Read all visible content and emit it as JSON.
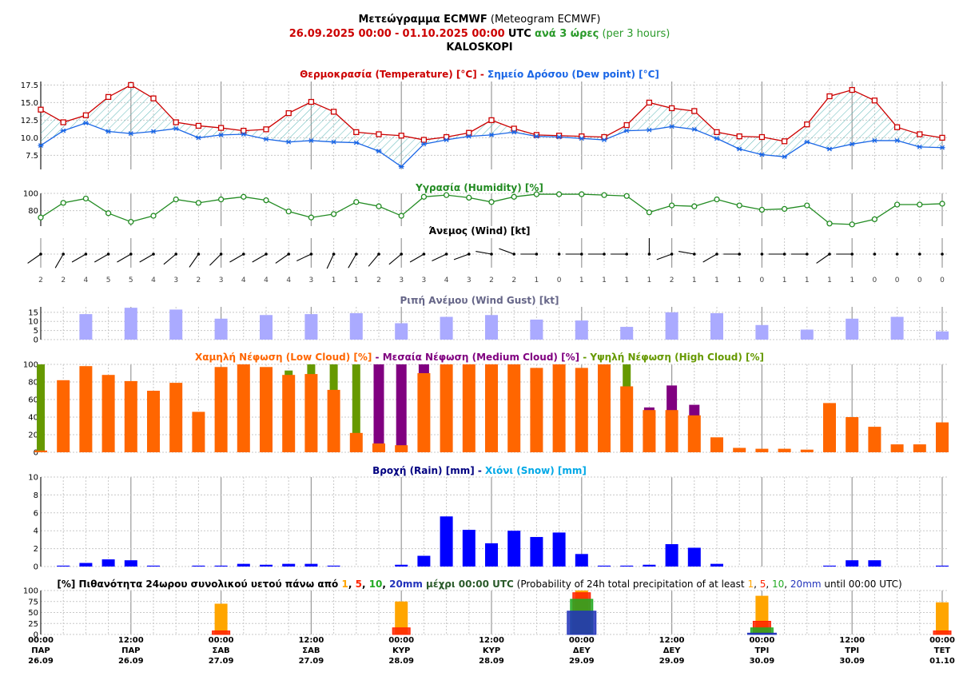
{
  "header": {
    "line1_bold": "Μετεώγραμμα ECMWF",
    "line1_rest": "(Meteogram ECMWF)",
    "range_from": "26.09.2025 00:00",
    "range_sep": "-",
    "range_to": "01.10.2025 00:00",
    "range_utc": "UTC",
    "range_step": "ανά 3 ώρες",
    "range_step_en": "(per 3 hours)",
    "location": "KALOSKOPI"
  },
  "colors": {
    "temperature": "#cc0000",
    "dewpoint": "#1a66e6",
    "humidity": "#228b22",
    "wind": "#000000",
    "gust": "#aaaaff",
    "low_cloud": "#ff6600",
    "medium_cloud": "#800080",
    "high_cloud": "#669900",
    "rain": "#0000ff",
    "snow": "#00a8e6",
    "p1": "#ffa500",
    "p5": "#ff2200",
    "p10": "#22aa22",
    "p20": "#2233bb"
  },
  "time_axis": {
    "labels": [
      [
        "00:00",
        "ΠΑΡ",
        "26.09"
      ],
      [
        "12:00",
        "ΠΑΡ",
        "26.09"
      ],
      [
        "00:00",
        "ΣΑΒ",
        "27.09"
      ],
      [
        "12:00",
        "ΣΑΒ",
        "27.09"
      ],
      [
        "00:00",
        "ΚΥΡ",
        "28.09"
      ],
      [
        "12:00",
        "ΚΥΡ",
        "28.09"
      ],
      [
        "00:00",
        "ΔΕΥ",
        "29.09"
      ],
      [
        "12:00",
        "ΔΕΥ",
        "29.09"
      ],
      [
        "00:00",
        "ΤΡΙ",
        "30.09"
      ],
      [
        "12:00",
        "ΤΡΙ",
        "30.09"
      ],
      [
        "00:00",
        "ΤΕΤ",
        "01.10"
      ]
    ]
  },
  "chart_data": [
    {
      "type": "line",
      "id": "temperature",
      "title_parts": [
        {
          "text": "Θερμοκρασία (Temperature) [°C]",
          "color": "temperature"
        },
        {
          "text": " - ",
          "color": "temperature"
        },
        {
          "text": "Σημείο Δρόσου (Dew point) [°C]",
          "color": "dewpoint"
        }
      ],
      "yticks": [
        "7.5",
        "10.0",
        "12.5",
        "15.0",
        "17.5"
      ],
      "ylim": [
        5.5,
        18
      ],
      "series": [
        {
          "name": "Θερμοκρασία (Temperature) [°C]",
          "values": [
            14.0,
            12.2,
            13.2,
            15.8,
            17.5,
            15.6,
            12.2,
            11.7,
            11.4,
            11.0,
            11.2,
            13.5,
            15.1,
            13.7,
            10.8,
            10.5,
            10.3,
            9.7,
            10.1,
            10.7,
            12.5,
            11.3,
            10.4,
            10.3,
            10.2,
            10.1,
            11.8,
            15.0,
            14.2,
            13.8,
            10.8,
            10.2,
            10.1,
            9.5,
            11.9,
            15.9,
            16.8,
            15.3,
            11.5,
            10.5,
            10.0
          ]
        },
        {
          "name": "Σημείο Δρόσου (Dew point) [°C]",
          "values": [
            8.9,
            11.0,
            12.1,
            10.9,
            10.6,
            10.9,
            11.3,
            10.0,
            10.4,
            10.5,
            9.8,
            9.4,
            9.6,
            9.4,
            9.3,
            8.1,
            5.9,
            9.1,
            9.7,
            10.2,
            10.4,
            10.8,
            10.2,
            10.1,
            9.9,
            9.7,
            11.0,
            11.1,
            11.6,
            11.2,
            9.9,
            8.4,
            7.6,
            7.3,
            9.4,
            8.4,
            9.1,
            9.6,
            9.6,
            8.7,
            8.6
          ]
        }
      ]
    },
    {
      "type": "line",
      "id": "humidity",
      "title": "Υγρασία (Humidity) [%]",
      "yticks": [
        "80",
        "100"
      ],
      "ylim": [
        62,
        100
      ],
      "series": [
        {
          "name": "Υγρασία (Humidity) [%]",
          "values": [
            72,
            89,
            94,
            77,
            67,
            74,
            93,
            89,
            93,
            96,
            92,
            79,
            72,
            76,
            90,
            85,
            74,
            96,
            98,
            95,
            90,
            96,
            99,
            99,
            99,
            98,
            97,
            78,
            86,
            85,
            93,
            86,
            81,
            82,
            86,
            65,
            64,
            70,
            87,
            87,
            88
          ]
        }
      ]
    },
    {
      "type": "wind",
      "id": "wind",
      "title": "Άνεμος (Wind) [kt]",
      "speed_kt": [
        2,
        2,
        4,
        5,
        5,
        4,
        3,
        2,
        3,
        4,
        4,
        4,
        3,
        1,
        1,
        2,
        3,
        3,
        4,
        3,
        2,
        2,
        1,
        0,
        1,
        1,
        1,
        1,
        2,
        1,
        1,
        1,
        0,
        1,
        1,
        1,
        1,
        0,
        0,
        0,
        0
      ],
      "direction_deg": [
        235,
        210,
        240,
        240,
        240,
        240,
        230,
        215,
        225,
        240,
        240,
        235,
        245,
        205,
        210,
        220,
        230,
        240,
        245,
        250,
        280,
        290,
        270,
        0,
        270,
        270,
        270,
        0,
        250,
        280,
        240,
        270,
        0,
        270,
        270,
        235,
        270,
        0,
        0,
        0,
        0
      ]
    },
    {
      "type": "bar",
      "id": "gust",
      "title": "Ριπή Ανέμου (Wind Gust) [kt]",
      "yticks": [
        "0",
        "5",
        "10",
        "15"
      ],
      "ylim": [
        0,
        18
      ],
      "values": [
        14.0,
        17.5,
        16.5,
        11.5,
        13.5,
        14.0,
        14.5,
        9.0,
        12.5,
        13.5,
        11.0,
        10.5,
        7.0,
        15.0,
        14.5,
        8.0,
        5.5,
        11.5,
        12.5,
        4.5
      ],
      "at_step": [
        2,
        4,
        6,
        8,
        10,
        12,
        14,
        16,
        18,
        20,
        22,
        24,
        26,
        28,
        30,
        32,
        34,
        36,
        38,
        40
      ]
    },
    {
      "type": "bar",
      "id": "cloud",
      "title_parts": [
        {
          "text": "Χαμηλή Νέφωση (Low Cloud) [%]",
          "color": "low_cloud"
        },
        {
          "text": " - ",
          "color": "medium_cloud"
        },
        {
          "text": "Μεσαία Νέφωση (Medium Cloud) [%]",
          "color": "medium_cloud"
        },
        {
          "text": " - ",
          "color": "high_cloud"
        },
        {
          "text": "Υψηλή Νέφωση (High Cloud) [%]",
          "color": "high_cloud"
        }
      ],
      "yticks": [
        "0",
        "20",
        "40",
        "60",
        "80",
        "100"
      ],
      "ylim": [
        0,
        100
      ],
      "series": [
        {
          "name": "Υψηλή Νέφωση (High Cloud) [%]",
          "values": [
            100,
            0,
            0,
            0,
            0,
            0,
            0,
            0,
            0,
            0,
            0,
            93,
            100,
            100,
            100,
            0,
            0,
            0,
            0,
            0,
            0,
            0,
            0,
            0,
            0,
            0,
            100,
            0,
            0,
            0,
            0,
            0,
            0,
            0,
            0,
            0,
            0,
            0,
            0,
            0,
            0
          ]
        },
        {
          "name": "Μεσαία Νέφωση (Medium Cloud) [%]",
          "values": [
            0,
            0,
            0,
            0,
            0,
            0,
            0,
            0,
            0,
            0,
            0,
            0,
            0,
            0,
            0,
            100,
            100,
            100,
            0,
            0,
            0,
            0,
            0,
            0,
            0,
            0,
            0,
            51,
            76,
            54,
            0,
            0,
            0,
            0,
            0,
            0,
            0,
            0,
            0,
            0,
            0
          ]
        },
        {
          "name": "Χαμηλή Νέφωση (Low Cloud) [%]",
          "values": [
            2,
            82,
            98,
            88,
            81,
            70,
            79,
            46,
            97,
            100,
            97,
            88,
            89,
            71,
            22,
            10,
            8,
            90,
            100,
            100,
            100,
            100,
            96,
            100,
            96,
            100,
            75,
            48,
            48,
            42,
            17,
            5,
            4,
            4,
            3,
            56,
            40,
            29,
            9,
            9,
            34
          ]
        }
      ]
    },
    {
      "type": "bar",
      "id": "precipitation",
      "title_parts": [
        {
          "text": "Βροχή (Rain) [mm]",
          "color": "rain_title"
        },
        {
          "text": " - ",
          "color": "rain_title"
        },
        {
          "text": "Χιόνι (Snow) [mm]",
          "color": "snow"
        }
      ],
      "yticks": [
        "0",
        "2",
        "4",
        "6",
        "8",
        "10"
      ],
      "ylim": [
        0,
        10
      ],
      "series": [
        {
          "name": "Βροχή (Rain) [mm]",
          "values": [
            0.0,
            0.1,
            0.4,
            0.8,
            0.7,
            0.1,
            0.0,
            0.1,
            0.1,
            0.3,
            0.2,
            0.3,
            0.3,
            0.1,
            0.0,
            0.0,
            0.2,
            1.2,
            5.6,
            4.1,
            2.6,
            4.0,
            3.3,
            3.8,
            1.4,
            0.1,
            0.1,
            0.2,
            2.5,
            2.1,
            0.3,
            0.0,
            0.0,
            0.0,
            0.0,
            0.1,
            0.7,
            0.7,
            0.0,
            0.0,
            0.1
          ]
        },
        {
          "name": "Χιόνι (Snow) [mm]",
          "values": [
            0,
            0,
            0,
            0,
            0,
            0,
            0,
            0,
            0,
            0,
            0,
            0,
            0,
            0,
            0,
            0,
            0,
            0,
            0,
            0,
            0,
            0,
            0,
            0,
            0,
            0,
            0,
            0,
            0,
            0,
            0,
            0,
            0,
            0,
            0,
            0,
            0,
            0,
            0,
            0,
            0
          ]
        }
      ]
    },
    {
      "type": "bar",
      "id": "probability",
      "title_parts": [
        {
          "text": "[%] Πιθανότητα 24ωρου συνολικού υετού πάνω από ",
          "color": "#000000",
          "bold": true
        },
        {
          "text": "1",
          "color": "p1",
          "bold": true
        },
        {
          "text": ", ",
          "color": "#000000",
          "bold": true
        },
        {
          "text": "5",
          "color": "p5",
          "bold": true
        },
        {
          "text": ", ",
          "color": "#000000",
          "bold": true
        },
        {
          "text": "10",
          "color": "p10",
          "bold": true
        },
        {
          "text": ", ",
          "color": "#000000",
          "bold": true
        },
        {
          "text": "20mm",
          "color": "p20",
          "bold": true
        },
        {
          "text": " μέχρι 00:00 UTC",
          "color": "#2a5a2a",
          "bold": true
        },
        {
          "text": " (Probability of 24h total precipitation of at least ",
          "color": "#000000",
          "bold": false
        },
        {
          "text": "1",
          "color": "p1",
          "bold": false
        },
        {
          "text": ", ",
          "color": "#000000",
          "bold": false
        },
        {
          "text": "5",
          "color": "p5",
          "bold": false
        },
        {
          "text": ", ",
          "color": "#000000",
          "bold": false
        },
        {
          "text": "10",
          "color": "p10",
          "bold": false
        },
        {
          "text": ", ",
          "color": "#000000",
          "bold": false
        },
        {
          "text": "20mm",
          "color": "p20",
          "bold": false
        },
        {
          "text": " until 00:00 UTC)",
          "color": "#000000",
          "bold": false
        }
      ],
      "yticks": [
        "0",
        "25",
        "50",
        "75",
        "100"
      ],
      "ylim": [
        0,
        100
      ],
      "categories": [
        "27.09",
        "28.09",
        "29.09",
        "30.09",
        "01.10"
      ],
      "at_step": [
        8,
        16,
        24,
        32,
        40
      ],
      "series": [
        {
          "name": "1",
          "values": [
            70,
            75,
            100,
            88,
            73
          ]
        },
        {
          "name": "5",
          "values": [
            8,
            15,
            95,
            30,
            8
          ]
        },
        {
          "name": "10",
          "values": [
            0,
            0,
            80,
            15,
            0
          ]
        },
        {
          "name": "20mm",
          "values": [
            0,
            0,
            53,
            3,
            0
          ]
        }
      ]
    }
  ]
}
